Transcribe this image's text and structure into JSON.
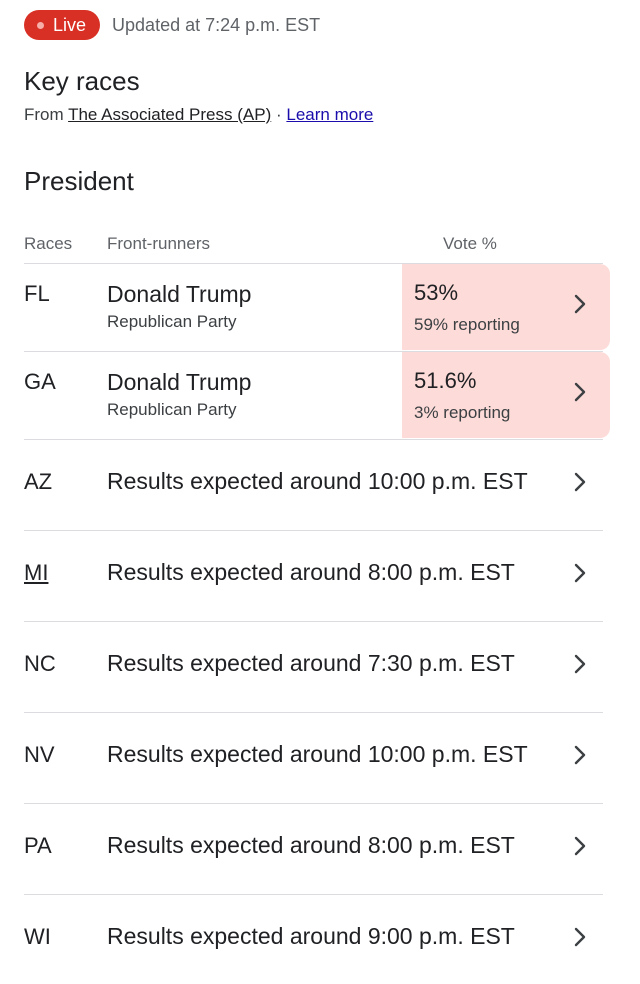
{
  "status": {
    "live_label": "Live",
    "updated_text": "Updated at 7:24 p.m. EST",
    "live_color": "#d93025"
  },
  "header": {
    "title": "Key races",
    "source_prefix": "From",
    "source_name": "The Associated Press (AP)",
    "separator": "·",
    "learn_more": "Learn more"
  },
  "race": {
    "title": "President",
    "columns": {
      "races": "Races",
      "front_runners": "Front-runners",
      "vote_pct": "Vote %"
    },
    "results": [
      {
        "state": "FL",
        "candidate": "Donald Trump",
        "party": "Republican Party",
        "vote_pct": "53%",
        "reporting": "59% reporting",
        "highlight_color": "#fddbd8"
      },
      {
        "state": "GA",
        "candidate": "Donald Trump",
        "party": "Republican Party",
        "vote_pct": "51.6%",
        "reporting": "3% reporting",
        "highlight_color": "#fddbd8"
      }
    ],
    "pending": [
      {
        "state": "AZ",
        "text": "Results expected around 10:00 p.m. EST"
      },
      {
        "state": "MI",
        "text": "Results expected around 8:00 p.m. EST"
      },
      {
        "state": "NC",
        "text": "Results expected around 7:30 p.m. EST"
      },
      {
        "state": "NV",
        "text": "Results expected around 10:00 p.m. EST"
      },
      {
        "state": "PA",
        "text": "Results expected around 8:00 p.m. EST"
      },
      {
        "state": "WI",
        "text": "Results expected around 9:00 p.m. EST"
      }
    ]
  },
  "icons": {
    "row_chevron": "chevron-right-icon",
    "live_dot": "live-dot-icon"
  }
}
